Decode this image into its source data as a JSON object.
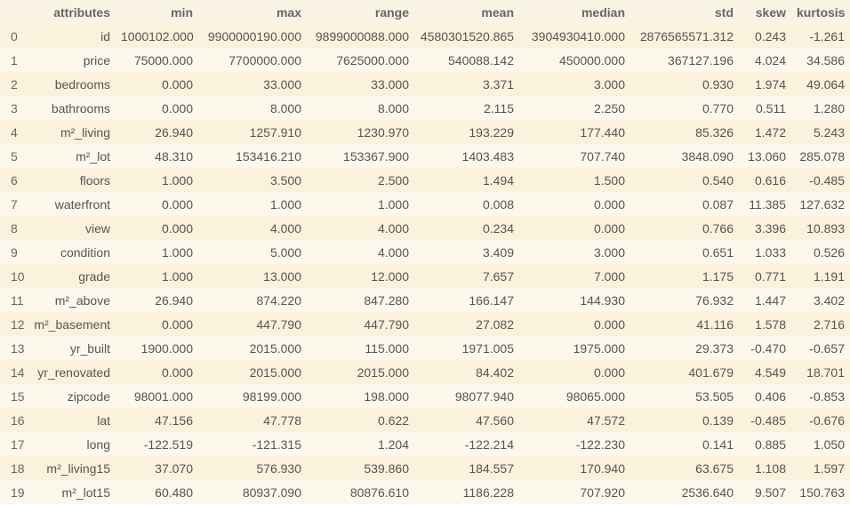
{
  "table": {
    "columns": [
      "",
      "attributes",
      "min",
      "max",
      "range",
      "mean",
      "median",
      "std",
      "skew",
      "kurtosis"
    ],
    "rows": [
      [
        "0",
        "id",
        "1000102.000",
        "9900000190.000",
        "9899000088.000",
        "4580301520.865",
        "3904930410.000",
        "2876565571.312",
        "0.243",
        "-1.261"
      ],
      [
        "1",
        "price",
        "75000.000",
        "7700000.000",
        "7625000.000",
        "540088.142",
        "450000.000",
        "367127.196",
        "4.024",
        "34.586"
      ],
      [
        "2",
        "bedrooms",
        "0.000",
        "33.000",
        "33.000",
        "3.371",
        "3.000",
        "0.930",
        "1.974",
        "49.064"
      ],
      [
        "3",
        "bathrooms",
        "0.000",
        "8.000",
        "8.000",
        "2.115",
        "2.250",
        "0.770",
        "0.511",
        "1.280"
      ],
      [
        "4",
        "m²_living",
        "26.940",
        "1257.910",
        "1230.970",
        "193.229",
        "177.440",
        "85.326",
        "1.472",
        "5.243"
      ],
      [
        "5",
        "m²_lot",
        "48.310",
        "153416.210",
        "153367.900",
        "1403.483",
        "707.740",
        "3848.090",
        "13.060",
        "285.078"
      ],
      [
        "6",
        "floors",
        "1.000",
        "3.500",
        "2.500",
        "1.494",
        "1.500",
        "0.540",
        "0.616",
        "-0.485"
      ],
      [
        "7",
        "waterfront",
        "0.000",
        "1.000",
        "1.000",
        "0.008",
        "0.000",
        "0.087",
        "11.385",
        "127.632"
      ],
      [
        "8",
        "view",
        "0.000",
        "4.000",
        "4.000",
        "0.234",
        "0.000",
        "0.766",
        "3.396",
        "10.893"
      ],
      [
        "9",
        "condition",
        "1.000",
        "5.000",
        "4.000",
        "3.409",
        "3.000",
        "0.651",
        "1.033",
        "0.526"
      ],
      [
        "10",
        "grade",
        "1.000",
        "13.000",
        "12.000",
        "7.657",
        "7.000",
        "1.175",
        "0.771",
        "1.191"
      ],
      [
        "11",
        "m²_above",
        "26.940",
        "874.220",
        "847.280",
        "166.147",
        "144.930",
        "76.932",
        "1.447",
        "3.402"
      ],
      [
        "12",
        "m²_basement",
        "0.000",
        "447.790",
        "447.790",
        "27.082",
        "0.000",
        "41.116",
        "1.578",
        "2.716"
      ],
      [
        "13",
        "yr_built",
        "1900.000",
        "2015.000",
        "115.000",
        "1971.005",
        "1975.000",
        "29.373",
        "-0.470",
        "-0.657"
      ],
      [
        "14",
        "yr_renovated",
        "0.000",
        "2015.000",
        "2015.000",
        "84.402",
        "0.000",
        "401.679",
        "4.549",
        "18.701"
      ],
      [
        "15",
        "zipcode",
        "98001.000",
        "98199.000",
        "198.000",
        "98077.940",
        "98065.000",
        "53.505",
        "0.406",
        "-0.853"
      ],
      [
        "16",
        "lat",
        "47.156",
        "47.778",
        "0.622",
        "47.560",
        "47.572",
        "0.139",
        "-0.485",
        "-0.676"
      ],
      [
        "17",
        "long",
        "-122.519",
        "-121.315",
        "1.204",
        "-122.214",
        "-122.230",
        "0.141",
        "0.885",
        "1.050"
      ],
      [
        "18",
        "m²_living15",
        "37.070",
        "576.930",
        "539.860",
        "184.557",
        "170.940",
        "63.675",
        "1.108",
        "1.597"
      ],
      [
        "19",
        "m²_lot15",
        "60.480",
        "80937.090",
        "80876.610",
        "1186.228",
        "707.920",
        "2536.640",
        "9.507",
        "150.763"
      ]
    ]
  }
}
